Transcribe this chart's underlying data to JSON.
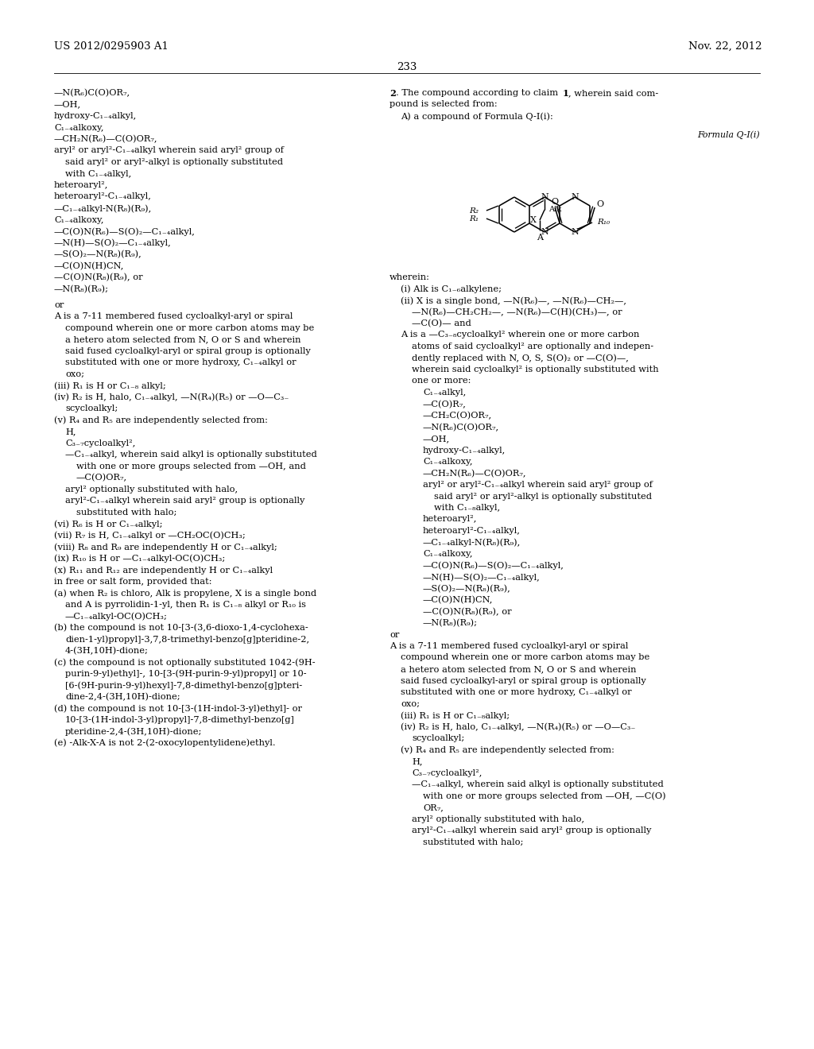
{
  "background_color": "#ffffff",
  "page_number": "233",
  "header_left": "US 2012/0295903 A1",
  "header_right": "Nov. 22, 2012",
  "left_lines": [
    [
      0,
      "—N(R₆)C(O)OR₇,"
    ],
    [
      0,
      "—OH,"
    ],
    [
      0,
      "hydroxy-C₁₋₄alkyl,"
    ],
    [
      0,
      "C₁₋₄alkoxy,"
    ],
    [
      0,
      "—CH₂N(R₆)—C(O)OR₇,"
    ],
    [
      0,
      "aryl² or aryl²-C₁₋₄alkyl wherein said aryl² group of"
    ],
    [
      1,
      "said aryl² or aryl²-alkyl is optionally substituted"
    ],
    [
      1,
      "with C₁₋₄alkyl,"
    ],
    [
      0,
      "heteroaryl²,"
    ],
    [
      0,
      "heteroaryl²-C₁₋₄alkyl,"
    ],
    [
      0,
      "—C₁₋₄alkyl-N(R₈)(R₉),"
    ],
    [
      0,
      "C₁₋₄alkoxy,"
    ],
    [
      0,
      "—C(O)N(R₆)—S(O)₂—C₁₋₄alkyl,"
    ],
    [
      0,
      "—N(H)—S(O)₂—C₁₋₄alkyl,"
    ],
    [
      0,
      "—S(O)₂—N(R₈)(R₉),"
    ],
    [
      0,
      "—C(O)N(H)CN,"
    ],
    [
      0,
      "—C(O)N(R₈)(R₉), or"
    ],
    [
      0,
      "—N(R₈)(R₉);"
    ],
    [
      -1,
      ""
    ],
    [
      -1,
      "or"
    ],
    [
      0,
      "A is a 7-11 membered fused cycloalkyl-aryl or spiral"
    ],
    [
      1,
      "compound wherein one or more carbon atoms may be"
    ],
    [
      1,
      "a hetero atom selected from N, O or S and wherein"
    ],
    [
      1,
      "said fused cycloalkyl-aryl or spiral group is optionally"
    ],
    [
      1,
      "substituted with one or more hydroxy, C₁₋₄alkyl or"
    ],
    [
      1,
      "oxo;"
    ],
    [
      0,
      "(iii) R₁ is H or C₁₋₈ alkyl;"
    ],
    [
      0,
      "(iv) R₂ is H, halo, C₁₋₄alkyl, —N(R₄)(R₅) or —O—C₃₋"
    ],
    [
      1,
      "scycloalkyl;"
    ],
    [
      0,
      "(v) R₄ and R₅ are independently selected from:"
    ],
    [
      1,
      "H,"
    ],
    [
      1,
      "C₃₋₇cycloalkyl²,"
    ],
    [
      1,
      "—C₁₋₄alkyl, wherein said alkyl is optionally substituted"
    ],
    [
      2,
      "with one or more groups selected from —OH, and"
    ],
    [
      2,
      "—C(O)OR₇,"
    ],
    [
      1,
      "aryl² optionally substituted with halo,"
    ],
    [
      1,
      "aryl²-C₁₋₄alkyl wherein said aryl² group is optionally"
    ],
    [
      2,
      "substituted with halo;"
    ],
    [
      0,
      "(vi) R₆ is H or C₁₋₄alkyl;"
    ],
    [
      0,
      "(vii) R₇ is H, C₁₋₄alkyl or —CH₂OC(O)CH₃;"
    ],
    [
      0,
      "(viii) R₈ and R₉ are independently H or C₁₋₄alkyl;"
    ],
    [
      0,
      "(ix) R₁₀ is H or —C₁₋₄alkyl-OC(O)CH₃;"
    ],
    [
      0,
      "(x) R₁₁ and R₁₂ are independently H or C₁₋₄alkyl"
    ],
    [
      0,
      "in free or salt form, provided that:"
    ],
    [
      0,
      "(a) when R₂ is chloro, Alk is propylene, X is a single bond"
    ],
    [
      1,
      "and A is pyrrolidin-1-yl, then R₁ is C₁₋₈ alkyl or R₁₀ is"
    ],
    [
      1,
      "—C₁₋₄alkyl-OC(O)CH₃;"
    ],
    [
      0,
      "(b) the compound is not 10-[3-(3,6-dioxo-1,4-cyclohexa-"
    ],
    [
      1,
      "dien-1-yl)propyl]-3,7,8-trimethyl-benzo[g]pteridine-2,"
    ],
    [
      1,
      "4-(3H,10H)-dione;"
    ],
    [
      0,
      "(c) the compound is not optionally substituted 1042-(9H-"
    ],
    [
      1,
      "purin-9-yl)ethyl]-, 10-[3-(9H-purin-9-yl)propyl] or 10-"
    ],
    [
      1,
      "[6-(9H-purin-9-yl)hexyl]-7,8-dimethyl-benzo[g]pteri-"
    ],
    [
      1,
      "dine-2,4-(3H,10H)-dione;"
    ],
    [
      0,
      "(d) the compound is not 10-[3-(1H-indol-3-yl)ethyl]- or"
    ],
    [
      1,
      "10-[3-(1H-indol-3-yl)propyl]-7,8-dimethyl-benzo[g]"
    ],
    [
      1,
      "pteridine-2,4-(3H,10H)-dione;"
    ],
    [
      0,
      "(e) -Alk-X-A is not 2-(2-oxocylopentylidene)ethyl."
    ]
  ],
  "right_lines_top": [
    [
      0,
      "pound is selected from:"
    ],
    [
      1,
      "A) a compound of Formula Q-I(i):"
    ]
  ],
  "right_lines_wherein": [
    [
      0,
      "wherein:"
    ],
    [
      1,
      "(i) Alk is C₁₋₆alkylene;"
    ],
    [
      1,
      "(ii) X is a single bond, —N(R₆)—, —N(R₆)—CH₂—,"
    ],
    [
      2,
      "—N(R₆)—CH₂CH₂—, —N(R₆)—C(H)(CH₃)—, or"
    ],
    [
      2,
      "—C(O)— and"
    ],
    [
      1,
      "A is a —C₃₋₈cycloalkyl² wherein one or more carbon"
    ],
    [
      2,
      "atoms of said cycloalkyl² are optionally and indepen-"
    ],
    [
      2,
      "dently replaced with N, O, S, S(O)₂ or —C(O)—,"
    ],
    [
      2,
      "wherein said cycloalkyl² is optionally substituted with"
    ],
    [
      2,
      "one or more:"
    ],
    [
      3,
      "C₁₋₄alkyl,"
    ],
    [
      3,
      "—C(O)R₇,"
    ],
    [
      3,
      "—CH₂C(O)OR₇,"
    ],
    [
      3,
      "—N(R₆)C(O)OR₇,"
    ],
    [
      3,
      "—OH,"
    ],
    [
      3,
      "hydroxy-C₁₋₄alkyl,"
    ],
    [
      3,
      "C₁₋₄alkoxy,"
    ],
    [
      3,
      "—CH₂N(R₆)—C(O)OR₇,"
    ],
    [
      3,
      "aryl² or aryl²-C₁₋₄alkyl wherein said aryl² group of"
    ],
    [
      4,
      "said aryl² or aryl²-alkyl is optionally substituted"
    ],
    [
      4,
      "with C₁₋₈alkyl,"
    ],
    [
      3,
      "heteroaryl²,"
    ],
    [
      3,
      "heteroaryl²-C₁₋₄alkyl,"
    ],
    [
      3,
      "—C₁₋₄alkyl-N(R₈)(R₉),"
    ],
    [
      3,
      "C₁₋₄alkoxy,"
    ],
    [
      3,
      "—C(O)N(R₆)—S(O)₂—C₁₋₄alkyl,"
    ],
    [
      3,
      "—N(H)—S(O)₂—C₁₋₄alkyl,"
    ],
    [
      3,
      "—S(O)₂—N(R₈)(R₉),"
    ],
    [
      3,
      "—C(O)N(H)CN,"
    ],
    [
      3,
      "—C(O)N(R₈)(R₉), or"
    ],
    [
      3,
      "—N(R₈)(R₉);"
    ],
    [
      -1,
      "or"
    ],
    [
      0,
      "A is a 7-11 membered fused cycloalkyl-aryl or spiral"
    ],
    [
      1,
      "compound wherein one or more carbon atoms may be"
    ],
    [
      1,
      "a hetero atom selected from N, O or S and wherein"
    ],
    [
      1,
      "said fused cycloalkyl-aryl or spiral group is optionally"
    ],
    [
      1,
      "substituted with one or more hydroxy, C₁₋₄alkyl or"
    ],
    [
      1,
      "oxo;"
    ],
    [
      1,
      "(iii) R₁ is H or C₁₋₈alkyl;"
    ],
    [
      1,
      "(iv) R₂ is H, halo, C₁₋₄alkyl, —N(R₄)(R₅) or —O—C₃₋"
    ],
    [
      2,
      "scycloalkyl;"
    ],
    [
      1,
      "(v) R₄ and R₅ are independently selected from:"
    ],
    [
      2,
      "H,"
    ],
    [
      2,
      "C₃₋₇cycloalkyl²,"
    ],
    [
      2,
      "—C₁₋₄alkyl, wherein said alkyl is optionally substituted"
    ],
    [
      3,
      "with one or more groups selected from —OH, —C(O)"
    ],
    [
      3,
      "OR₇,"
    ],
    [
      2,
      "aryl² optionally substituted with halo,"
    ],
    [
      2,
      "aryl²-C₁₋₄alkyl wherein said aryl² group is optionally"
    ],
    [
      3,
      "substituted with halo;"
    ]
  ]
}
